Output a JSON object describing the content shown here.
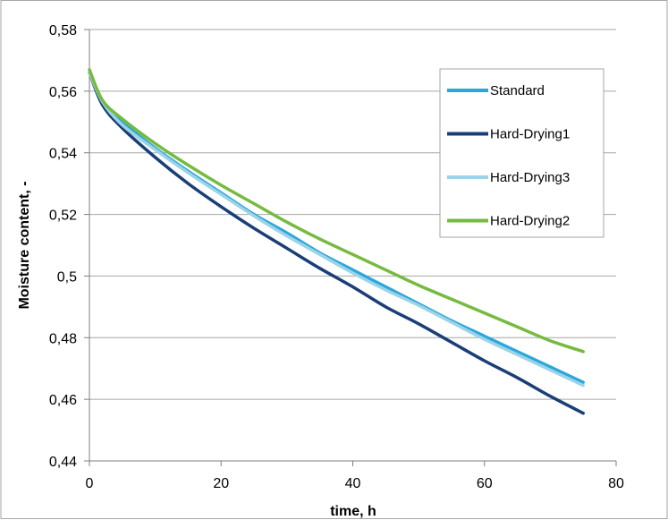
{
  "chart_data": {
    "type": "line",
    "title": "",
    "xlabel": "time, h",
    "ylabel": "Moisture content, -",
    "xlim": [
      0,
      80
    ],
    "ylim": [
      0.44,
      0.58
    ],
    "x_ticks": [
      0,
      20,
      40,
      60,
      80
    ],
    "x_tick_labels": [
      "0",
      "20",
      "40",
      "60",
      "80"
    ],
    "y_ticks": [
      0.44,
      0.46,
      0.48,
      0.5,
      0.52,
      0.54,
      0.56,
      0.58
    ],
    "y_tick_labels": [
      "0,44",
      "0,46",
      "0,48",
      "0,5",
      "0,52",
      "0,54",
      "0,56",
      "0,58"
    ],
    "grid": "horizontal",
    "legend_position": "top-right",
    "series": [
      {
        "name": "Standard",
        "color": "#2aa7dc",
        "x": [
          0,
          2,
          5,
          10,
          15,
          20,
          25,
          30,
          35,
          40,
          45,
          50,
          55,
          60,
          65,
          70,
          75
        ],
        "y": [
          0.566,
          0.5565,
          0.55,
          0.5415,
          0.534,
          0.527,
          0.52,
          0.514,
          0.5075,
          0.502,
          0.4965,
          0.491,
          0.4855,
          0.4805,
          0.4755,
          0.4705,
          0.4655
        ]
      },
      {
        "name": "Hard-Drying1",
        "color": "#1a3e77",
        "x": [
          0,
          2,
          5,
          10,
          15,
          20,
          25,
          30,
          35,
          40,
          45,
          50,
          55,
          60,
          65,
          70,
          75
        ],
        "y": [
          0.566,
          0.5555,
          0.548,
          0.5385,
          0.53,
          0.5225,
          0.5155,
          0.509,
          0.5025,
          0.4965,
          0.49,
          0.4845,
          0.4785,
          0.4725,
          0.467,
          0.461,
          0.4555
        ]
      },
      {
        "name": "Hard-Drying3",
        "color": "#9cd3e6",
        "x": [
          0,
          2,
          5,
          10,
          15,
          20,
          25,
          30,
          35,
          40,
          45,
          50,
          55,
          60,
          65,
          70,
          75
        ],
        "y": [
          0.566,
          0.5565,
          0.549,
          0.541,
          0.5335,
          0.5265,
          0.5195,
          0.513,
          0.507,
          0.501,
          0.4955,
          0.4905,
          0.485,
          0.4795,
          0.4745,
          0.4695,
          0.4645
        ]
      },
      {
        "name": "Hard-Drying2",
        "color": "#76bb40",
        "x": [
          0,
          2,
          5,
          10,
          15,
          20,
          25,
          30,
          35,
          40,
          45,
          50,
          55,
          60,
          65,
          70,
          75
        ],
        "y": [
          0.567,
          0.557,
          0.551,
          0.543,
          0.536,
          0.5295,
          0.5235,
          0.5175,
          0.512,
          0.507,
          0.502,
          0.497,
          0.4925,
          0.488,
          0.4835,
          0.479,
          0.4755
        ]
      }
    ]
  }
}
